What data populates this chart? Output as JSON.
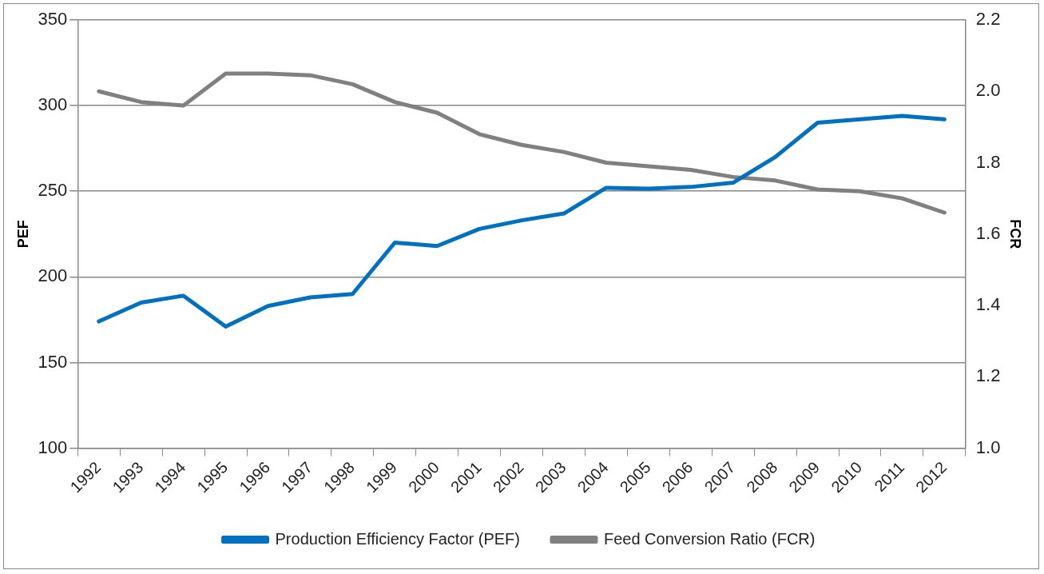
{
  "chart_data": {
    "type": "line",
    "ylabel": "PEF",
    "y2label": "FCR",
    "categories": [
      "1992",
      "1993",
      "1994",
      "1995",
      "1996",
      "1997",
      "1998",
      "1999",
      "2000",
      "2001",
      "2002",
      "2003",
      "2004",
      "2005",
      "2006",
      "2007",
      "2008",
      "2009",
      "2010",
      "2011",
      "2012"
    ],
    "series": [
      {
        "name": "Production Efficiency Factor (PEF)",
        "color": "#0070c0",
        "values": [
          174,
          185,
          189,
          171,
          183,
          188,
          190,
          220,
          218,
          228,
          233,
          237,
          252,
          251.5,
          252.5,
          255,
          270,
          290,
          292,
          294,
          292
        ]
      },
      {
        "name": "Feed Conversion Ratio (FCR)",
        "color": "#808080",
        "axis": "y2",
        "values": [
          2.0,
          1.97,
          1.96,
          2.05,
          2.05,
          2.045,
          2.02,
          1.97,
          1.94,
          1.88,
          1.85,
          1.83,
          1.8,
          1.79,
          1.78,
          1.76,
          1.75,
          1.725,
          1.72,
          1.7,
          1.66
        ]
      }
    ],
    "ylim": [
      100,
      350
    ],
    "yticks": [
      100,
      150,
      200,
      250,
      300,
      350
    ],
    "y2lim": [
      1.0,
      2.2
    ],
    "y2ticks": [
      {
        "value": 1.0,
        "label": "1.0"
      },
      {
        "value": 1.2,
        "label": "1.2"
      },
      {
        "value": 1.4,
        "label": "1.4"
      },
      {
        "value": 1.6,
        "label": "1.6"
      },
      {
        "value": 1.8,
        "label": "1.8"
      },
      {
        "value": 2.0,
        "label": "2.0"
      },
      {
        "value": 2.2,
        "label": "2.2"
      }
    ],
    "grid": "y",
    "legend": "bottom",
    "marker": "none",
    "line_style": "solid"
  }
}
